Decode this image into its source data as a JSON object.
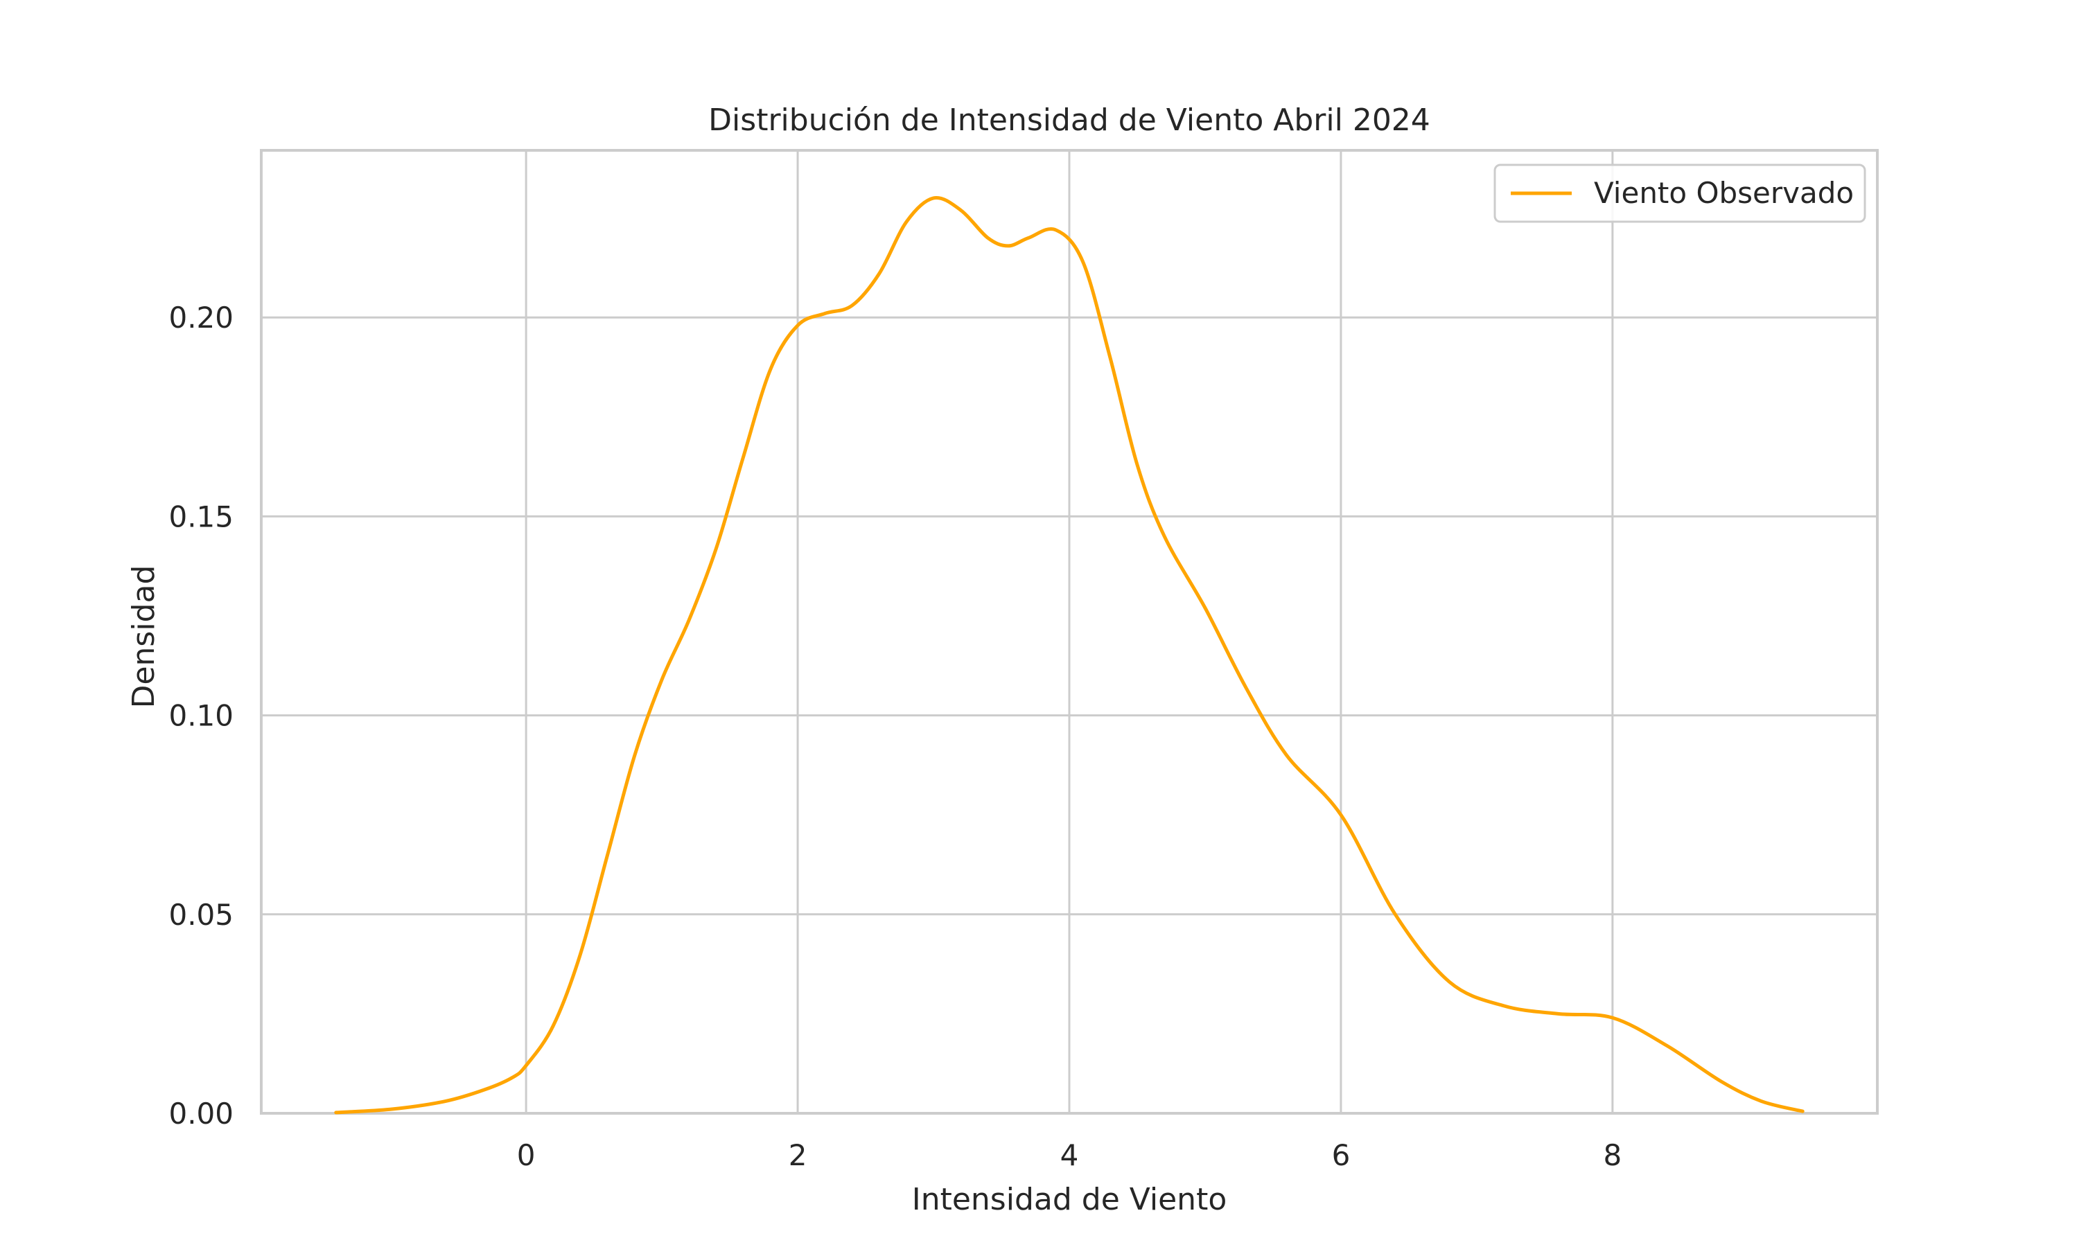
{
  "chart_data": {
    "type": "line",
    "title": "Distribución de Intensidad de Viento Abril 2024",
    "xlabel": "Intensidad de Viento",
    "ylabel": "Densidad",
    "xlim": [
      -1.95,
      9.95
    ],
    "ylim": [
      0.0,
      0.242
    ],
    "xticks": [
      0,
      2,
      4,
      6,
      8
    ],
    "xtick_labels": [
      "0",
      "2",
      "4",
      "6",
      "8"
    ],
    "yticks": [
      0.0,
      0.05,
      0.1,
      0.15,
      0.2
    ],
    "ytick_labels": [
      "0.00",
      "0.05",
      "0.10",
      "0.15",
      "0.20"
    ],
    "grid": true,
    "legend_position": "top-right",
    "series": [
      {
        "name": "Viento Observado",
        "color": "#FFA500",
        "x": [
          -1.4,
          -1.0,
          -0.6,
          -0.3,
          -0.1,
          0.0,
          0.2,
          0.4,
          0.6,
          0.8,
          1.0,
          1.2,
          1.4,
          1.6,
          1.8,
          2.0,
          2.2,
          2.4,
          2.6,
          2.8,
          3.0,
          3.2,
          3.4,
          3.55,
          3.7,
          3.9,
          4.1,
          4.3,
          4.5,
          4.7,
          5.0,
          5.3,
          5.6,
          6.0,
          6.4,
          6.8,
          7.2,
          7.6,
          8.0,
          8.4,
          8.8,
          9.1,
          9.4
        ],
        "y": [
          0.0002,
          0.001,
          0.003,
          0.006,
          0.009,
          0.012,
          0.022,
          0.04,
          0.065,
          0.09,
          0.109,
          0.124,
          0.142,
          0.165,
          0.187,
          0.198,
          0.201,
          0.203,
          0.211,
          0.224,
          0.23,
          0.227,
          0.22,
          0.218,
          0.22,
          0.222,
          0.214,
          0.19,
          0.163,
          0.145,
          0.127,
          0.107,
          0.09,
          0.075,
          0.05,
          0.033,
          0.027,
          0.025,
          0.024,
          0.017,
          0.008,
          0.003,
          0.0005
        ]
      }
    ]
  }
}
